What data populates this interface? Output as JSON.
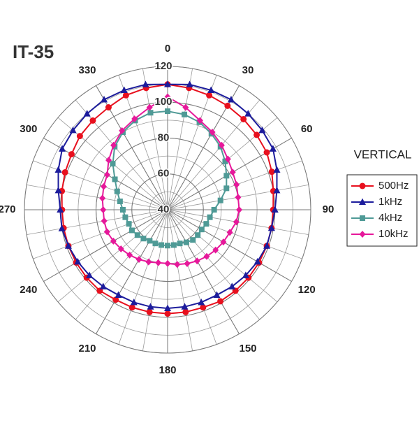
{
  "chart_data": {
    "type": "polar",
    "title": "IT-35",
    "legend_title": "VERTICAL",
    "legend": "right",
    "theta": [
      0,
      10,
      20,
      30,
      40,
      50,
      60,
      70,
      80,
      90,
      100,
      110,
      120,
      130,
      140,
      150,
      160,
      170,
      180,
      190,
      200,
      210,
      220,
      230,
      240,
      250,
      260,
      270,
      280,
      290,
      300,
      310,
      320,
      330,
      340,
      350
    ],
    "thetaticks": [
      0,
      30,
      60,
      90,
      120,
      150,
      180,
      210,
      240,
      270,
      300,
      330
    ],
    "rlim": [
      40,
      120
    ],
    "rticks": [
      40,
      60,
      80,
      100,
      120
    ],
    "grid": true,
    "series": [
      {
        "name": "500Hz",
        "color": "#e8101e",
        "marker": "circle",
        "values": [
          110,
          109,
          108,
          107,
          106,
          105,
          104,
          102,
          100,
          99,
          99,
          99,
          99,
          99,
          99,
          99,
          98,
          98,
          98,
          98,
          98,
          98,
          99,
          99,
          99,
          99,
          99,
          99,
          100,
          101,
          102,
          104,
          105,
          106,
          108,
          109
        ]
      },
      {
        "name": "1kHz",
        "color": "#1c1c9c",
        "marker": "triangle",
        "values": [
          110,
          111,
          111,
          111,
          110,
          109,
          108,
          105,
          102,
          100,
          99,
          99,
          98,
          97,
          96,
          95,
          95,
          95,
          95,
          95,
          95,
          95,
          96,
          97,
          98,
          99,
          100,
          100,
          102,
          105,
          108,
          109,
          110,
          111,
          111,
          111
        ]
      },
      {
        "name": "4kHz",
        "color": "#4f9a96",
        "marker": "square",
        "values": [
          95,
          94,
          92,
          89,
          86,
          82,
          78,
          75,
          70,
          66,
          64,
          63,
          62,
          62,
          62,
          61,
          60,
          60,
          60,
          60,
          60,
          60,
          61,
          62,
          63,
          63,
          64,
          65,
          67,
          70,
          74,
          80,
          86,
          90,
          93,
          95
        ]
      },
      {
        "name": "10kHz",
        "color": "#e6189a",
        "marker": "diamond",
        "values": [
          103,
          98,
          93,
          90,
          87,
          84,
          82,
          81,
          80,
          80,
          79,
          77,
          76,
          75,
          74,
          73,
          72,
          71,
          70,
          70,
          71,
          72,
          73,
          74,
          75,
          76,
          76,
          76,
          77,
          78,
          79,
          83,
          87,
          91,
          94,
          98
        ]
      }
    ]
  }
}
